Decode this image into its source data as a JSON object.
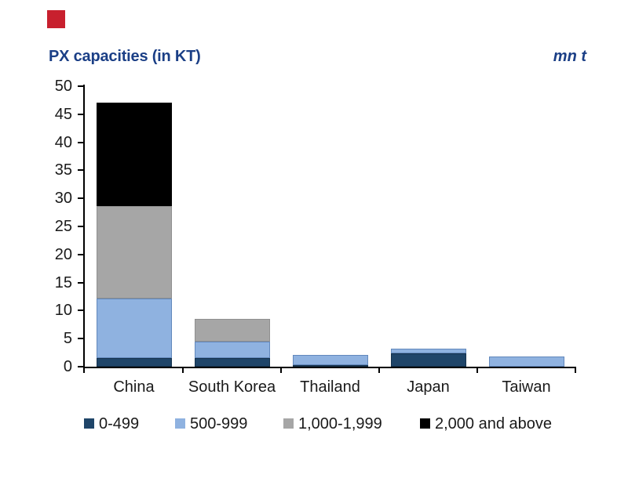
{
  "header": {
    "red_square_color": "#C8202E",
    "title_color": "#1B3F86"
  },
  "chart_data": {
    "type": "bar",
    "stacked": true,
    "title": "PX capacities (in KT)",
    "unit_label": "mn t",
    "xlabel": "",
    "ylabel": "",
    "ylim": [
      0,
      50
    ],
    "ytick_step": 5,
    "yticks": [
      0,
      5,
      10,
      15,
      20,
      25,
      30,
      35,
      40,
      45,
      50
    ],
    "grid": false,
    "legend_position": "bottom",
    "categories": [
      "China",
      "South Korea",
      "Thailand",
      "Japan",
      "Taiwan"
    ],
    "series": [
      {
        "name": "0-499",
        "color": "#1F4569",
        "border": "#16334E",
        "values": [
          1.5,
          1.5,
          0.3,
          2.4,
          0
        ]
      },
      {
        "name": "500-999",
        "color": "#8FB2E0",
        "border": "#6288BC",
        "values": [
          10.7,
          2.9,
          1.8,
          0.8,
          1.8
        ]
      },
      {
        "name": "1,000-1,999",
        "color": "#A6A6A6",
        "border": "#8F8F8F",
        "values": [
          16.4,
          4.1,
          0,
          0,
          0
        ]
      },
      {
        "name": "2,000 and above",
        "color": "#000000",
        "border": "#000000",
        "values": [
          18.4,
          0,
          0,
          0,
          0
        ]
      }
    ],
    "totals": [
      47.0,
      8.5,
      2.1,
      3.2,
      1.8
    ],
    "axis_color": "#000000",
    "tick_label_color": "#1a1a1a"
  }
}
